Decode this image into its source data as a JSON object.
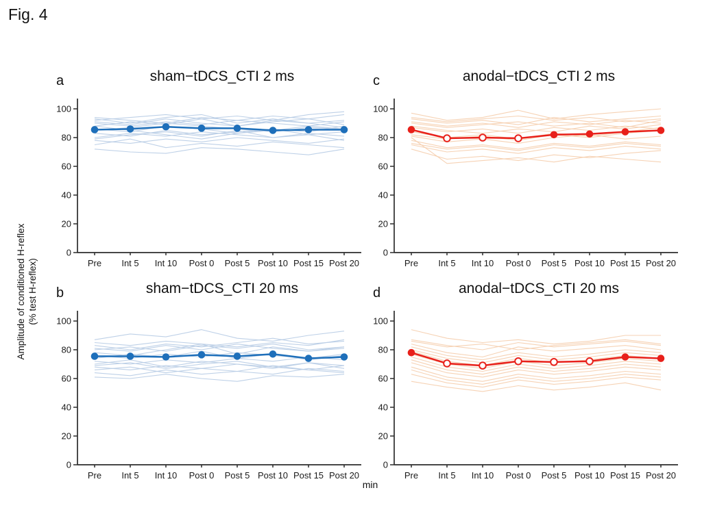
{
  "figure": {
    "label": "Fig. 4",
    "ylabel_line1": "Amplitude of conditioned H-reflex",
    "ylabel_line2": "(% test H-reflex)",
    "xlabel": "min"
  },
  "colors": {
    "sham_mean": "#1e6fba",
    "sham_individual": "#b9cde6",
    "anodal_mean": "#e8201a",
    "anodal_individual": "#f6d0b0",
    "axis": "#2b2b2b",
    "text": "#1a1a1a",
    "background": "#ffffff"
  },
  "axis": {
    "ticks": [
      0,
      20,
      40,
      60,
      80,
      100
    ],
    "ymin": 0,
    "ymax": 100,
    "grid": false
  },
  "categories": [
    "Pre",
    "Int 5",
    "Int 10",
    "Post 0",
    "Post 5",
    "Post 10",
    "Post 15",
    "Post 20"
  ],
  "chart_data": [
    {
      "type": "line",
      "panel": "a",
      "title": "sham−tDCS_CTI 2 ms",
      "xlabel": "min",
      "ylabel": "Amplitude of conditioned H-reflex (% test H-reflex)",
      "ylim": [
        0,
        100
      ],
      "categories": [
        "Pre",
        "Int 5",
        "Int 10",
        "Post 0",
        "Post 5",
        "Post 10",
        "Post 15",
        "Post 20"
      ],
      "mean_color": "#1e6fba",
      "individual_color": "#b9cde6",
      "series": [
        {
          "name": "group mean",
          "values": [
            85.5,
            86,
            87.5,
            86.5,
            86.5,
            85,
            85.5,
            85.5
          ],
          "open_markers": [
            false,
            false,
            false,
            false,
            false,
            false,
            false,
            false
          ]
        }
      ],
      "individuals": [
        [
          92,
          94,
          96,
          93,
          95,
          92,
          96,
          98
        ],
        [
          90,
          88,
          91,
          89,
          92,
          90,
          88,
          91
        ],
        [
          88,
          91,
          89,
          93,
          88,
          91,
          93,
          89
        ],
        [
          85,
          87,
          90,
          88,
          86,
          84,
          87,
          86
        ],
        [
          93,
          90,
          94,
          96,
          90,
          93,
          90,
          92
        ],
        [
          80,
          83,
          81,
          84,
          82,
          80,
          83,
          81
        ],
        [
          78,
          76,
          79,
          77,
          80,
          78,
          76,
          79
        ],
        [
          83,
          81,
          85,
          82,
          84,
          86,
          82,
          84
        ],
        [
          72,
          70,
          69,
          73,
          72,
          70,
          68,
          72
        ],
        [
          75,
          79,
          73,
          76,
          74,
          77,
          75,
          73
        ],
        [
          88,
          85,
          82,
          79,
          83,
          86,
          84,
          88
        ],
        [
          91,
          89,
          93,
          90,
          88,
          92,
          90,
          87
        ],
        [
          79,
          82,
          84,
          81,
          85,
          80,
          82,
          78
        ],
        [
          86,
          84,
          88,
          86,
          83,
          85,
          88,
          86
        ],
        [
          94,
          92,
          90,
          94,
          92,
          95,
          93,
          96
        ]
      ]
    },
    {
      "type": "line",
      "panel": "b",
      "title": "sham−tDCS_CTI 20 ms",
      "xlabel": "min",
      "ylabel": "Amplitude of conditioned H-reflex (% test H-reflex)",
      "ylim": [
        0,
        100
      ],
      "categories": [
        "Pre",
        "Int 5",
        "Int 10",
        "Post 0",
        "Post 5",
        "Post 10",
        "Post 15",
        "Post 20"
      ],
      "mean_color": "#1e6fba",
      "individual_color": "#b9cde6",
      "series": [
        {
          "name": "group mean",
          "values": [
            75.5,
            75.5,
            75,
            76.5,
            75.5,
            77,
            74,
            75
          ],
          "open_markers": [
            false,
            false,
            false,
            false,
            false,
            false,
            false,
            false
          ]
        }
      ],
      "individuals": [
        [
          87,
          91,
          89,
          94,
          88,
          86,
          90,
          93
        ],
        [
          83,
          80,
          84,
          82,
          85,
          88,
          84,
          86
        ],
        [
          80,
          82,
          79,
          83,
          81,
          84,
          80,
          82
        ],
        [
          76,
          74,
          77,
          75,
          78,
          76,
          74,
          77
        ],
        [
          72,
          70,
          73,
          71,
          74,
          72,
          75,
          73
        ],
        [
          68,
          66,
          69,
          67,
          70,
          68,
          66,
          69
        ],
        [
          61,
          60,
          63,
          60,
          58,
          62,
          61,
          63
        ],
        [
          70,
          73,
          68,
          72,
          70,
          67,
          71,
          69
        ],
        [
          78,
          76,
          80,
          84,
          77,
          82,
          79,
          81
        ],
        [
          85,
          83,
          86,
          84,
          82,
          85,
          83,
          87
        ],
        [
          66,
          68,
          64,
          67,
          65,
          69,
          66,
          64
        ],
        [
          74,
          77,
          75,
          79,
          74,
          77,
          73,
          76
        ],
        [
          81,
          79,
          83,
          80,
          84,
          81,
          79,
          82
        ],
        [
          69,
          71,
          67,
          70,
          72,
          68,
          71,
          67
        ],
        [
          64,
          62,
          66,
          63,
          65,
          63,
          67,
          65
        ]
      ]
    },
    {
      "type": "line",
      "panel": "c",
      "title": "anodal−tDCS_CTI 2 ms",
      "xlabel": "min",
      "ylabel": "Amplitude of conditioned H-reflex (% test H-reflex)",
      "ylim": [
        0,
        100
      ],
      "categories": [
        "Pre",
        "Int 5",
        "Int 10",
        "Post 0",
        "Post 5",
        "Post 10",
        "Post 15",
        "Post 20"
      ],
      "mean_color": "#e8201a",
      "individual_color": "#f6d0b0",
      "series": [
        {
          "name": "group mean",
          "values": [
            85.5,
            79.5,
            80,
            79.5,
            82,
            82.5,
            84,
            85
          ],
          "open_markers": [
            false,
            true,
            true,
            true,
            false,
            false,
            false,
            false
          ]
        }
      ],
      "individuals": [
        [
          97,
          92,
          94,
          99,
          93,
          96,
          98,
          100
        ],
        [
          93,
          90,
          92,
          89,
          94,
          91,
          93,
          95
        ],
        [
          90,
          87,
          89,
          91,
          88,
          90,
          87,
          92
        ],
        [
          87,
          84,
          86,
          83,
          87,
          85,
          88,
          86
        ],
        [
          84,
          80,
          82,
          79,
          83,
          81,
          84,
          87
        ],
        [
          81,
          77,
          79,
          76,
          80,
          82,
          79,
          81
        ],
        [
          78,
          73,
          75,
          72,
          76,
          74,
          77,
          75
        ],
        [
          75,
          70,
          72,
          69,
          73,
          71,
          74,
          72
        ],
        [
          72,
          65,
          67,
          64,
          68,
          66,
          69,
          71
        ],
        [
          80,
          62,
          64,
          66,
          63,
          67,
          65,
          63
        ],
        [
          88,
          85,
          83,
          86,
          84,
          88,
          86,
          89
        ],
        [
          94,
          91,
          93,
          95,
          92,
          94,
          91,
          93
        ],
        [
          82,
          79,
          81,
          78,
          82,
          80,
          83,
          85
        ],
        [
          76,
          72,
          74,
          71,
          75,
          73,
          76,
          74
        ],
        [
          91,
          88,
          90,
          87,
          91,
          89,
          92,
          90
        ]
      ]
    },
    {
      "type": "line",
      "panel": "d",
      "title": "anodal−tDCS_CTI 20 ms",
      "xlabel": "min",
      "ylabel": "Amplitude of conditioned H-reflex (% test H-reflex)",
      "ylim": [
        0,
        100
      ],
      "categories": [
        "Pre",
        "Int 5",
        "Int 10",
        "Post 0",
        "Post 5",
        "Post 10",
        "Post 15",
        "Post 20"
      ],
      "mean_color": "#e8201a",
      "individual_color": "#f6d0b0",
      "series": [
        {
          "name": "group mean",
          "values": [
            78,
            70.5,
            69,
            72,
            71.5,
            72,
            75,
            74
          ],
          "open_markers": [
            false,
            true,
            true,
            true,
            true,
            true,
            false,
            false
          ]
        }
      ],
      "individuals": [
        [
          94,
          88,
          85,
          87,
          84,
          86,
          90,
          90
        ],
        [
          86,
          82,
          84,
          80,
          83,
          85,
          87,
          84
        ],
        [
          84,
          78,
          75,
          82,
          79,
          81,
          83,
          80
        ],
        [
          80,
          74,
          71,
          76,
          73,
          75,
          78,
          76
        ],
        [
          77,
          70,
          67,
          72,
          69,
          71,
          74,
          72
        ],
        [
          73,
          66,
          63,
          68,
          65,
          67,
          70,
          68
        ],
        [
          68,
          61,
          58,
          63,
          60,
          62,
          65,
          63
        ],
        [
          63,
          57,
          54,
          59,
          56,
          58,
          61,
          59
        ],
        [
          58,
          54,
          51,
          55,
          52,
          54,
          57,
          52
        ],
        [
          71,
          64,
          61,
          66,
          63,
          65,
          68,
          66
        ],
        [
          82,
          76,
          73,
          78,
          75,
          77,
          80,
          78
        ],
        [
          87,
          83,
          80,
          85,
          82,
          84,
          86,
          83
        ],
        [
          75,
          68,
          65,
          70,
          67,
          69,
          72,
          70
        ],
        [
          66,
          59,
          56,
          61,
          58,
          60,
          63,
          61
        ],
        [
          79,
          72,
          69,
          74,
          71,
          73,
          76,
          74
        ]
      ]
    }
  ]
}
